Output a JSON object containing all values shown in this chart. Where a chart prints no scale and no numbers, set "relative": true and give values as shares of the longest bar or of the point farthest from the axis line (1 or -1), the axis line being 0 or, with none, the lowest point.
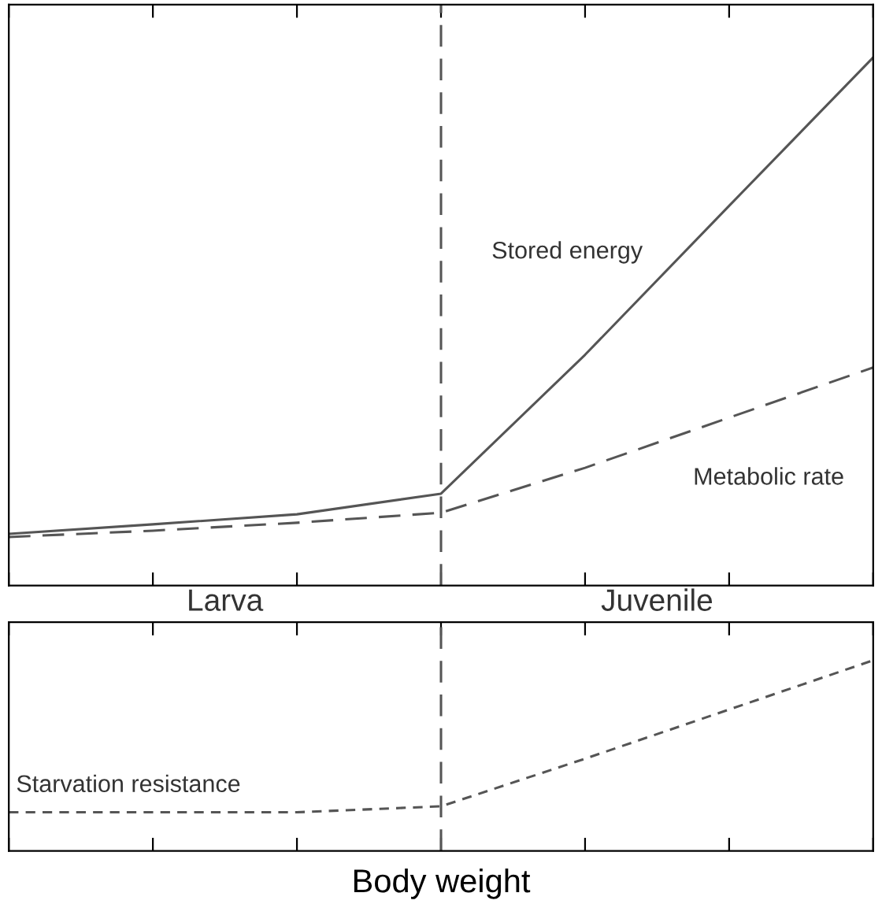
{
  "chart_data": [
    {
      "type": "line",
      "relative": true,
      "categories": [
        null,
        null,
        null,
        null,
        null,
        null,
        null
      ],
      "series": [
        {
          "name": "Stored energy",
          "color": "#555555",
          "line_style": "solid",
          "values": [
            0.098,
            0.116,
            0.135,
            0.174,
            0.437,
            0.719,
            1
          ]
        },
        {
          "name": "Metabolic rate",
          "color": "#555555",
          "line_style": "dashed",
          "values": [
            0.092,
            0.104,
            0.119,
            0.138,
            0.223,
            0.318,
            0.413
          ]
        }
      ],
      "annotations": [
        "Larva",
        "Juvenile"
      ],
      "grid": false,
      "legend": false,
      "marker": "none",
      "tick_labels": false
    },
    {
      "type": "line",
      "relative": true,
      "categories": [
        null,
        null,
        null,
        null,
        null,
        null,
        null
      ],
      "xlabel": "Body weight",
      "series": [
        {
          "name": "Starvation resistance",
          "color": "#555555",
          "line_style": "dotted",
          "values": [
            0.203,
            0.203,
            0.203,
            0.234,
            0.484,
            0.742,
            1
          ]
        }
      ],
      "grid": false,
      "legend": false,
      "marker": "none",
      "tick_labels": false
    }
  ]
}
